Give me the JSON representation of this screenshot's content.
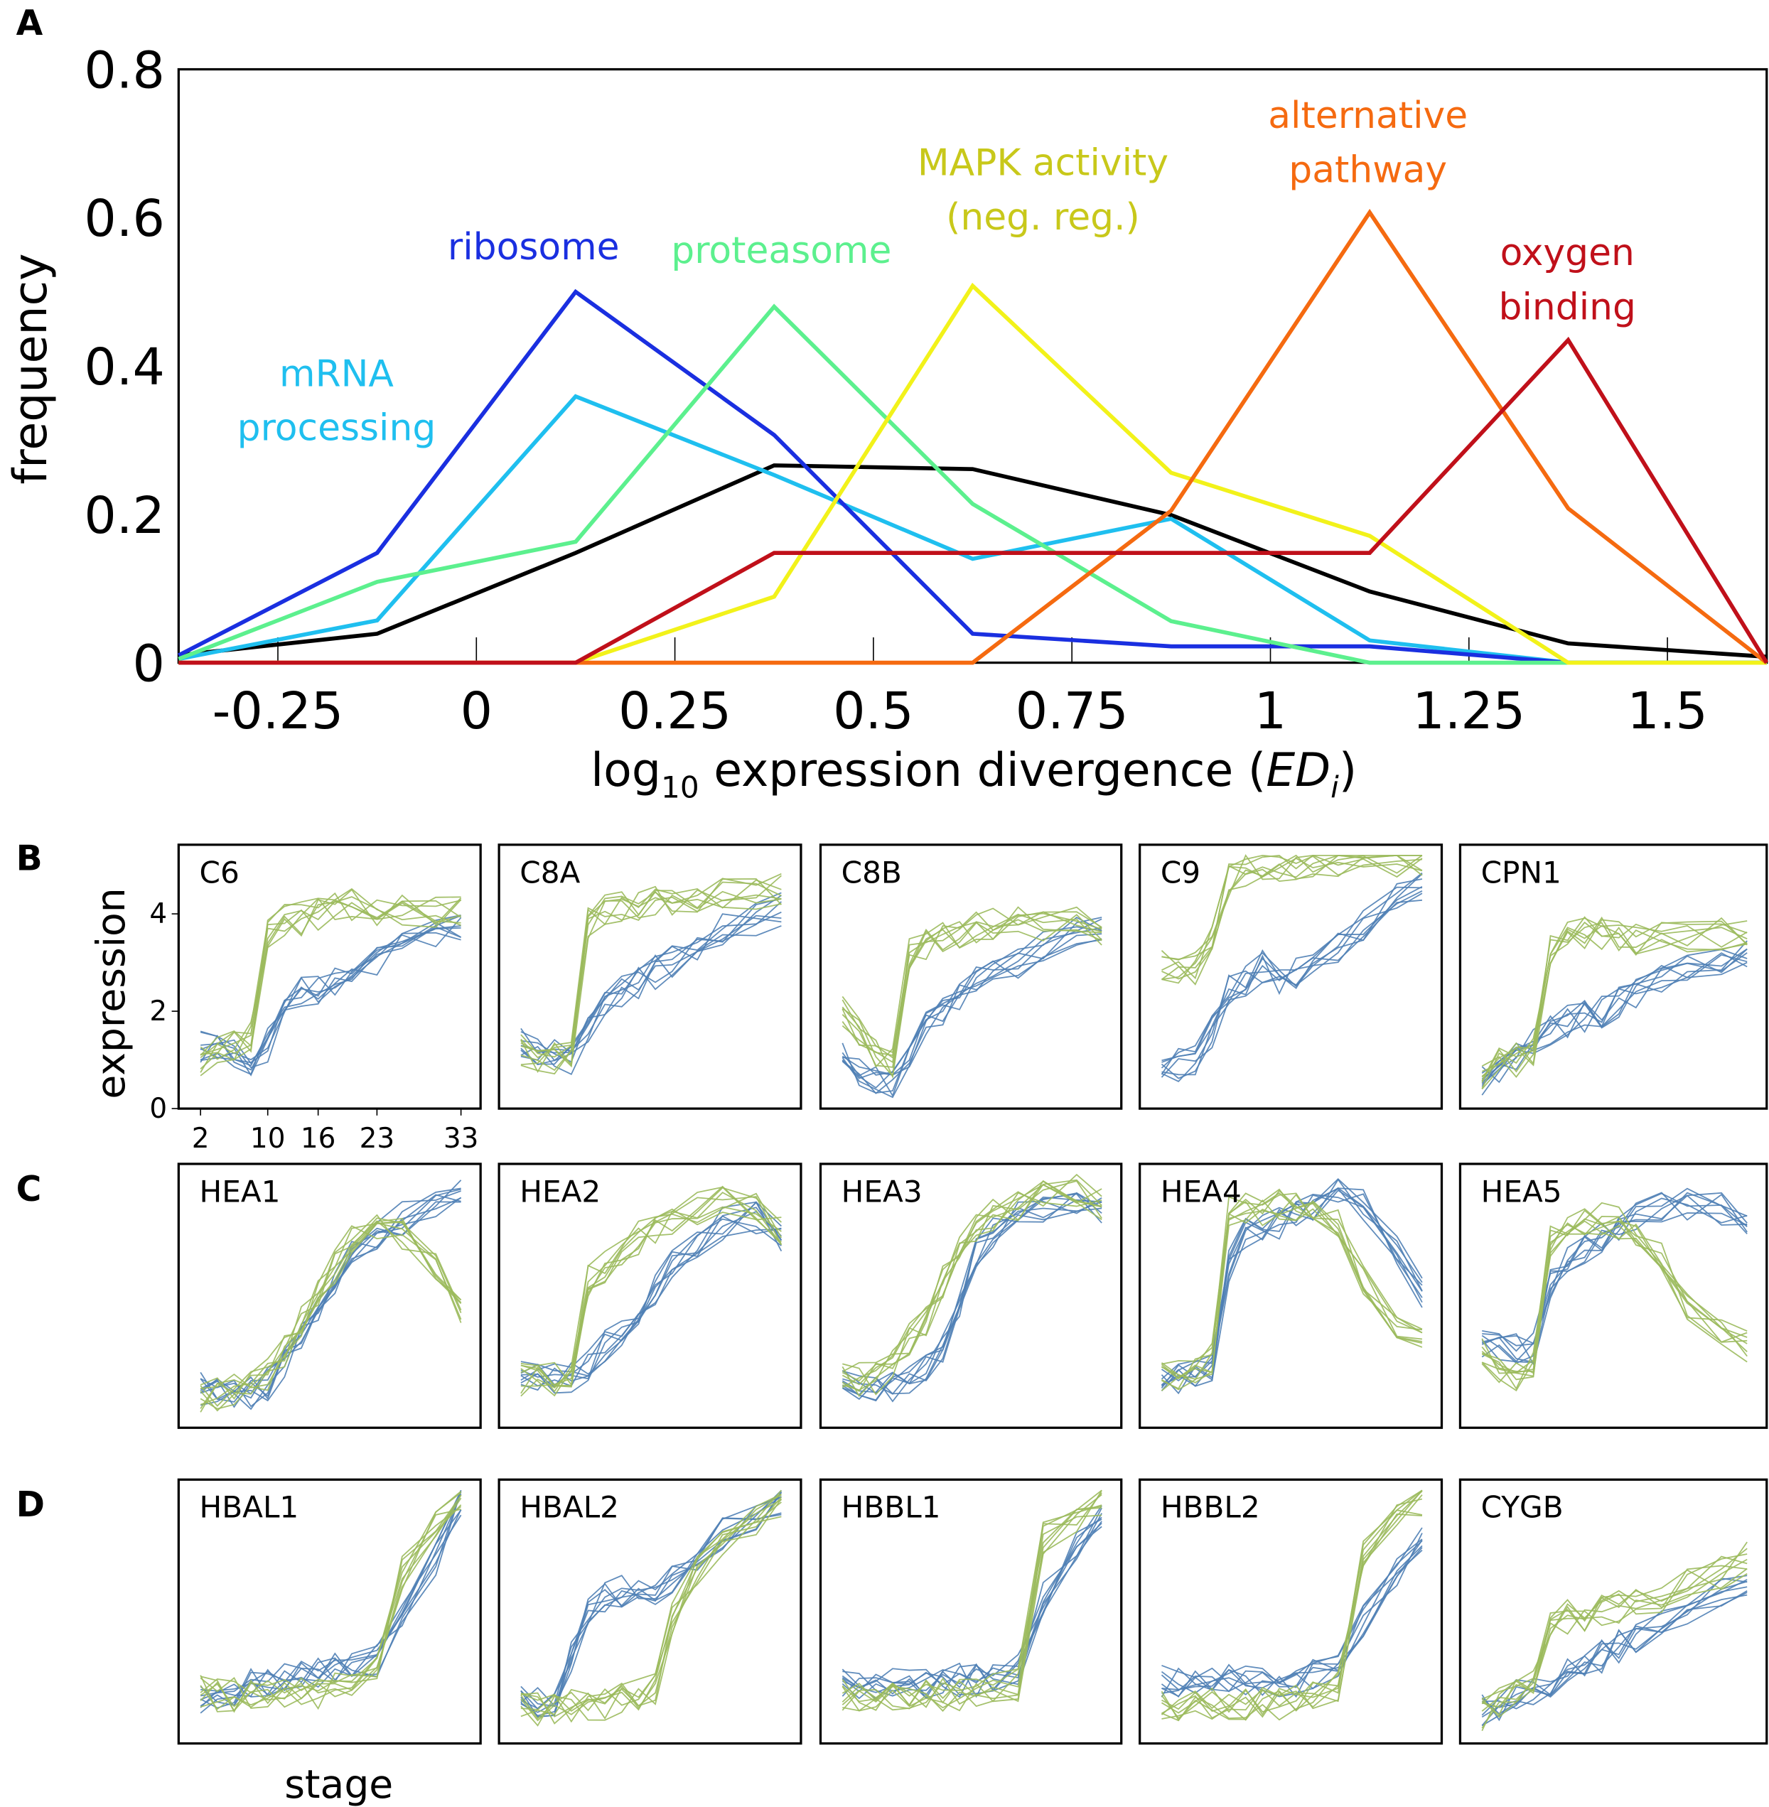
{
  "panel_labels": {
    "a": "A",
    "b": "B",
    "c": "C",
    "d": "D"
  },
  "chart_data": [
    {
      "type": "line",
      "panel": "A",
      "xlabel_main": "log",
      "xlabel_sub": "10",
      "xlabel_rest": " expression divergence (",
      "xlabel_italic": "ED",
      "xlabel_italic_sub": "i",
      "xlabel_end": ")",
      "ylabel": "frequency",
      "xlim": [
        -0.375,
        1.625
      ],
      "ylim": [
        0,
        0.8
      ],
      "xticks": [
        -0.25,
        0,
        0.25,
        0.5,
        0.75,
        1,
        1.25,
        1.5
      ],
      "xtick_labels": [
        "-0.25",
        "0",
        "0.25",
        "0.5",
        "0.75",
        "1",
        "1.25",
        "1.5"
      ],
      "yticks": [
        0,
        0.2,
        0.4,
        0.6,
        0.8
      ],
      "ytick_labels": [
        "0",
        "0.2",
        "0.4",
        "0.6",
        "0.8"
      ],
      "x": [
        -0.375,
        -0.125,
        0.125,
        0.375,
        0.625,
        0.875,
        1.125,
        1.375,
        1.625
      ],
      "series": [
        {
          "label_lines": [],
          "color": "#000000",
          "values": [
            0.01,
            0.039,
            0.148,
            0.266,
            0.261,
            0.199,
            0.096,
            0.026,
            0.008
          ]
        },
        {
          "label_lines": [
            "mRNA",
            "processing"
          ],
          "color": "#1fbfef",
          "values": [
            0.005,
            0.057,
            0.359,
            0.253,
            0.14,
            0.194,
            0.03,
            0,
            0
          ]
        },
        {
          "label_lines": [
            "ribosome"
          ],
          "color": "#1a2fe0",
          "values": [
            0.01,
            0.148,
            0.5,
            0.307,
            0.039,
            0.022,
            0.022,
            0,
            0
          ]
        },
        {
          "label_lines": [
            "proteasome"
          ],
          "color": "#5cf08e",
          "values": [
            0.005,
            0.109,
            0.163,
            0.48,
            0.214,
            0.056,
            0,
            0,
            0
          ]
        },
        {
          "label_lines": [
            "MAPK activity",
            "(neg. reg.)"
          ],
          "color": "#f2f21a",
          "label_color": "#c8c81a",
          "values": [
            0,
            0,
            0,
            0.089,
            0.508,
            0.256,
            0.171,
            0,
            0
          ]
        },
        {
          "label_lines": [
            "alternative",
            "pathway"
          ],
          "color": "#f56a10",
          "values": [
            0,
            0,
            0,
            0,
            0,
            0.205,
            0.607,
            0.208,
            0
          ]
        },
        {
          "label_lines": [
            "oxygen",
            "binding"
          ],
          "color": "#c0101a",
          "values": [
            0,
            0,
            0,
            0.148,
            0.148,
            0.148,
            0.148,
            0.435,
            0
          ]
        }
      ]
    },
    {
      "type": "line",
      "panels": "B-D",
      "ylabel": "expression",
      "xlabel": "stage",
      "yticks": [
        0,
        2,
        4
      ],
      "ytick_labels": [
        "0",
        "2",
        "4"
      ],
      "xticks": [
        2,
        10,
        16,
        23,
        33
      ],
      "xtick_labels": [
        "2",
        "10",
        "16",
        "23",
        "33"
      ],
      "stages": [
        2,
        4,
        6,
        8,
        10,
        12,
        14,
        16,
        18,
        20,
        23,
        26,
        30,
        33
      ],
      "colors": {
        "green": "#9bba5c",
        "blue": "#4f7fb5"
      },
      "rows": [
        {
          "panel": "B",
          "genes": [
            {
              "name": "C6",
              "green": [
                1,
                1.2,
                1.3,
                1.5,
                3.6,
                3.9,
                3.9,
                4.0,
                4.1,
                4.2,
                4.1,
                4.1,
                4.0,
                4.0
              ],
              "blue": [
                1.3,
                1.2,
                1.1,
                1.0,
                1.3,
                2.2,
                2.4,
                2.5,
                2.6,
                2.8,
                3.0,
                3.3,
                3.6,
                3.7
              ]
            },
            {
              "name": "C8A",
              "green": [
                1.2,
                1.1,
                1.0,
                1.1,
                3.8,
                4.1,
                4.2,
                4.2,
                4.3,
                4.3,
                4.3,
                4.4,
                4.4,
                4.5
              ],
              "blue": [
                1.3,
                1.2,
                1.1,
                1.0,
                1.6,
                2.2,
                2.4,
                2.6,
                2.8,
                3.0,
                3.3,
                3.7,
                3.9,
                4.1
              ]
            },
            {
              "name": "C8B",
              "green": [
                2.0,
                1.5,
                1.2,
                1.0,
                3.2,
                3.4,
                3.5,
                3.6,
                3.7,
                3.8,
                3.8,
                3.7,
                3.8,
                3.6
              ],
              "blue": [
                1.0,
                0.8,
                0.6,
                0.5,
                1.0,
                1.7,
                2.0,
                2.3,
                2.6,
                2.8,
                3.0,
                3.3,
                3.6,
                3.8
              ]
            },
            {
              "name": "C9",
              "green": [
                3.0,
                2.9,
                2.9,
                3.4,
                4.7,
                4.9,
                5.0,
                5.0,
                5.0,
                5.1,
                5.1,
                5.1,
                5.1,
                5.1
              ],
              "blue": [
                0.8,
                0.9,
                1.0,
                1.6,
                2.5,
                2.6,
                2.9,
                2.7,
                2.8,
                3.0,
                3.3,
                3.8,
                4.3,
                4.6
              ]
            },
            {
              "name": "CPN1",
              "green": [
                0.6,
                0.9,
                1.0,
                1.1,
                3.3,
                3.7,
                3.6,
                3.6,
                3.6,
                3.5,
                3.5,
                3.5,
                3.6,
                3.6
              ],
              "blue": [
                0.6,
                0.8,
                1.1,
                1.3,
                1.6,
                1.8,
                1.9,
                2.0,
                2.2,
                2.4,
                2.6,
                2.9,
                3.1,
                3.2
              ]
            }
          ]
        },
        {
          "panel": "C",
          "genes": [
            {
              "name": "HEA1",
              "green": [
                0.6,
                0.7,
                0.8,
                0.9,
                1.1,
                1.6,
                2.2,
                2.8,
                3.3,
                3.8,
                4.1,
                4.0,
                3.4,
                2.3
              ],
              "blue": [
                0.8,
                0.8,
                0.7,
                0.7,
                0.9,
                1.3,
                1.8,
                2.4,
                3.0,
                3.6,
                4.0,
                4.3,
                4.6,
                4.8
              ]
            },
            {
              "name": "HEA2",
              "green": [
                1.0,
                1.0,
                1.0,
                1.0,
                3.0,
                3.3,
                3.6,
                3.9,
                4.1,
                4.3,
                4.5,
                4.7,
                4.5,
                4.0
              ],
              "blue": [
                1.1,
                1.0,
                1.0,
                1.0,
                1.3,
                1.7,
                2.0,
                2.4,
                2.8,
                3.3,
                3.8,
                4.2,
                4.3,
                3.9
              ]
            },
            {
              "name": "HEA3",
              "green": [
                1.0,
                1.0,
                1.0,
                1.3,
                1.8,
                2.2,
                3.0,
                3.7,
                4.1,
                4.4,
                4.6,
                4.8,
                4.9,
                4.6
              ],
              "blue": [
                0.9,
                0.8,
                0.8,
                0.8,
                1.0,
                1.2,
                1.6,
                2.4,
                3.6,
                4.0,
                4.3,
                4.5,
                4.6,
                4.4
              ]
            },
            {
              "name": "HEA4",
              "green": [
                1.0,
                1.1,
                1.2,
                1.4,
                4.4,
                4.5,
                4.5,
                4.6,
                4.6,
                4.6,
                4.2,
                3.0,
                2.0,
                1.8
              ],
              "blue": [
                0.9,
                1.0,
                1.2,
                1.2,
                3.3,
                4.0,
                4.1,
                4.2,
                4.4,
                4.6,
                4.8,
                4.6,
                3.6,
                2.8
              ]
            },
            {
              "name": "HEA5",
              "green": [
                1.5,
                1.2,
                1.1,
                1.2,
                3.8,
                4.2,
                4.3,
                4.3,
                4.2,
                4.0,
                3.5,
                2.5,
                2.0,
                1.7
              ],
              "blue": [
                1.7,
                1.6,
                1.6,
                1.6,
                3.0,
                3.5,
                3.7,
                3.9,
                4.1,
                4.3,
                4.5,
                4.6,
                4.5,
                4.3
              ]
            }
          ]
        },
        {
          "panel": "D",
          "genes": [
            {
              "name": "HBAL1",
              "green": [
                1.1,
                1.0,
                1.0,
                1.0,
                1.0,
                1.0,
                1.0,
                1.0,
                1.1,
                1.2,
                1.5,
                3.5,
                4.5,
                5.0
              ],
              "blue": [
                0.9,
                1.0,
                1.1,
                1.2,
                1.3,
                1.3,
                1.4,
                1.4,
                1.5,
                1.6,
                1.7,
                2.5,
                3.8,
                5.0
              ]
            },
            {
              "name": "HBAL2",
              "green": [
                0.8,
                0.7,
                0.7,
                0.8,
                0.8,
                0.8,
                0.9,
                1.0,
                1.1,
                2.6,
                3.6,
                4.2,
                4.6,
                5.0
              ],
              "blue": [
                0.9,
                0.8,
                0.9,
                1.8,
                2.8,
                3.0,
                3.1,
                3.1,
                3.2,
                3.4,
                3.8,
                4.3,
                4.7,
                5.0
              ]
            },
            {
              "name": "HBBL1",
              "green": [
                1.0,
                1.0,
                1.0,
                1.0,
                1.0,
                1.0,
                1.0,
                1.0,
                1.0,
                1.1,
                1.2,
                4.2,
                4.6,
                5.0
              ],
              "blue": [
                1.2,
                1.2,
                1.2,
                1.2,
                1.2,
                1.2,
                1.2,
                1.3,
                1.3,
                1.4,
                1.5,
                3.0,
                4.0,
                4.8
              ]
            },
            {
              "name": "HBBL2",
              "green": [
                0.8,
                0.8,
                0.8,
                0.8,
                0.8,
                0.8,
                0.8,
                0.8,
                0.9,
                1.0,
                1.2,
                4.0,
                4.6,
                5.0
              ],
              "blue": [
                1.3,
                1.3,
                1.3,
                1.3,
                1.3,
                1.3,
                1.3,
                1.3,
                1.3,
                1.4,
                1.5,
                2.5,
                3.5,
                4.3
              ]
            },
            {
              "name": "CYGB",
              "green": [
                0.6,
                0.8,
                1.0,
                1.2,
                2.4,
                2.6,
                2.5,
                2.7,
                2.8,
                3.0,
                3.0,
                3.3,
                3.5,
                3.8
              ],
              "blue": [
                0.7,
                0.8,
                1.0,
                1.1,
                1.3,
                1.4,
                1.6,
                1.8,
                2.0,
                2.2,
                2.5,
                2.8,
                3.1,
                3.4
              ]
            }
          ]
        }
      ]
    }
  ]
}
